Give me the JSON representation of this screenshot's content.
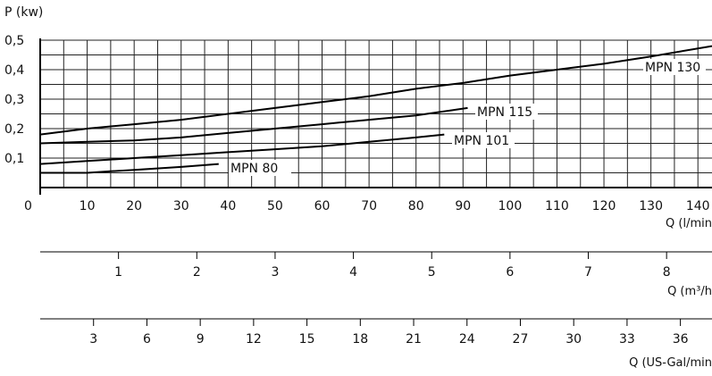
{
  "chart_data": {
    "type": "line",
    "ylabel": "P (kw)",
    "xlabel": "Q (l/min",
    "ylim": [
      0,
      0.5
    ],
    "xlim": [
      0,
      143
    ],
    "y_ticks": [
      "0,1",
      "0,2",
      "0,3",
      "0,4",
      "0,5"
    ],
    "x_ticks": [
      "0",
      "10",
      "20",
      "30",
      "40",
      "50",
      "60",
      "70",
      "80",
      "90",
      "100",
      "110",
      "120",
      "130",
      "140"
    ],
    "grid": true,
    "series": [
      {
        "name": "MPN 130",
        "x": [
          0,
          10,
          20,
          30,
          40,
          50,
          60,
          70,
          80,
          90,
          100,
          110,
          120,
          130,
          143
        ],
        "y": [
          0.18,
          0.2,
          0.215,
          0.23,
          0.25,
          0.27,
          0.29,
          0.31,
          0.335,
          0.355,
          0.38,
          0.4,
          0.42,
          0.445,
          0.48
        ]
      },
      {
        "name": "MPN 115",
        "x": [
          0,
          10,
          20,
          30,
          40,
          50,
          60,
          70,
          80,
          91
        ],
        "y": [
          0.15,
          0.155,
          0.16,
          0.17,
          0.185,
          0.2,
          0.215,
          0.23,
          0.245,
          0.27
        ]
      },
      {
        "name": "MPN 101",
        "x": [
          0,
          10,
          20,
          30,
          40,
          50,
          60,
          70,
          80,
          86
        ],
        "y": [
          0.08,
          0.09,
          0.1,
          0.11,
          0.12,
          0.13,
          0.14,
          0.155,
          0.17,
          0.18
        ]
      },
      {
        "name": "MPN 80",
        "x": [
          0,
          10,
          15,
          20,
          30,
          38
        ],
        "y": [
          0.05,
          0.05,
          0.055,
          0.06,
          0.07,
          0.08
        ]
      }
    ],
    "secondary_axes": [
      {
        "label": "Q (m³/h",
        "ticks": [
          "1",
          "2",
          "3",
          "4",
          "5",
          "6",
          "7",
          "8"
        ],
        "values": [
          1,
          2,
          3,
          4,
          5,
          6,
          7,
          8
        ],
        "factor": 16.6667
      },
      {
        "label": "Q (US-Gal/min",
        "ticks": [
          "3",
          "6",
          "9",
          "12",
          "15",
          "18",
          "21",
          "24",
          "27",
          "30",
          "33",
          "36"
        ],
        "values": [
          3,
          6,
          9,
          12,
          15,
          18,
          21,
          24,
          27,
          30,
          33,
          36
        ],
        "factor": 3.7854
      }
    ]
  }
}
